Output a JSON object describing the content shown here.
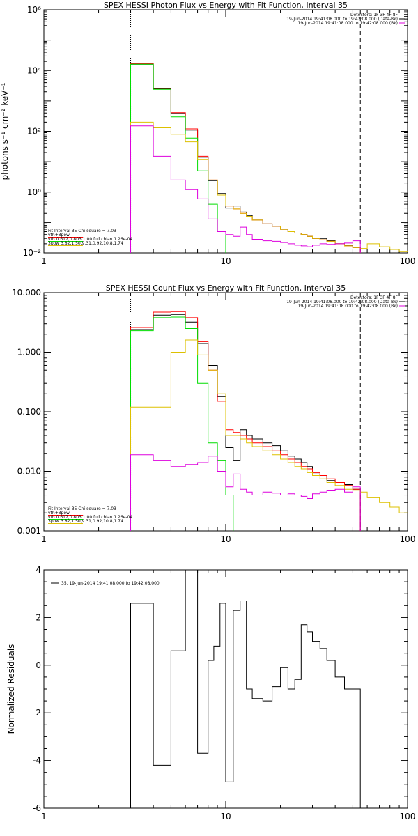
{
  "colors": {
    "black": "#000000",
    "red": "#ff0000",
    "green": "#00dd00",
    "yellow": "#ddc000",
    "magenta": "#dd00dd"
  },
  "chart_data": [
    {
      "id": "photon",
      "type": "line",
      "step": true,
      "title": "SPEX HESSI Photon Flux vs Energy with Fit Function, Interval 35",
      "ylabel": "photons s⁻¹ cm⁻² keV⁻¹",
      "xlabel": "",
      "xscale": "log",
      "yscale": "log",
      "xlim": [
        1,
        100
      ],
      "ylim": [
        0.01,
        1000000
      ],
      "xticks": [
        1,
        10,
        100
      ],
      "xtick_labels": [
        "1",
        "10",
        "100"
      ],
      "yticks": [
        0.01,
        1,
        100,
        10000,
        1000000
      ],
      "ytick_labels": [
        "10⁻²",
        "10⁰",
        "10²",
        "10⁴",
        "10⁶"
      ],
      "vlines": [
        {
          "x": 3,
          "style": "dotted"
        },
        {
          "x": 55,
          "style": "dashed"
        }
      ],
      "legend_top": [
        "Detectors: 1F 3F 4F 8F",
        "19-Jun-2014 19:41:08.000 to 19:42:08.000 (Data-Bk)",
        "19-Jun-2014 19:41:08.000 to 19:42:08.000 (Bk)"
      ],
      "legend_top_colors": [
        "",
        "#000000",
        "#dd00dd"
      ],
      "legend_bottom": [
        "Fit Interval 35   Chi-square = 7.03",
        "vth+3pow",
        "vth 0.617,0.803,1.00  full chian 1.26e-04",
        "3pow 3.82,1.50,9.31,0.92,10.8,1.74"
      ],
      "legend_bottom_colors": [
        "",
        "#ff0000",
        "#00dd00",
        "#ddc000"
      ],
      "edges": [
        3,
        4,
        5,
        6,
        7,
        8,
        9,
        10,
        11,
        12,
        13,
        14,
        16,
        18,
        20,
        22,
        24,
        26,
        28,
        30,
        33,
        36,
        40,
        45,
        50,
        55,
        60,
        70,
        80,
        90,
        100
      ],
      "series": [
        {
          "color": "#000000",
          "values": [
            16000,
            2500,
            400,
            110,
            14,
            2.4,
            0.9,
            0.3,
            0.35,
            0.22,
            0.17,
            0.12,
            0.09,
            0.075,
            0.06,
            0.05,
            0.045,
            0.04,
            0.035,
            0.03,
            0.03,
            0.025,
            0.02,
            0.018,
            0.015,
            null,
            null,
            null,
            null,
            null
          ]
        },
        {
          "color": "#ff0000",
          "values": [
            17000,
            2600,
            410,
            120,
            15,
            2.5,
            0.8,
            0.35,
            0.28,
            0.2,
            0.16,
            0.12,
            0.09,
            0.075,
            0.06,
            0.05,
            0.045,
            0.04,
            0.035,
            0.03,
            0.027,
            0.024,
            0.02,
            0.017,
            0.015,
            null,
            null,
            null,
            null,
            null
          ]
        },
        {
          "color": "#00dd00",
          "values": [
            16000,
            2400,
            300,
            60,
            5,
            0.4,
            0.05,
            null,
            null,
            null,
            null,
            null,
            null,
            null,
            null,
            null,
            null,
            null,
            null,
            null,
            null,
            null,
            null,
            null,
            null,
            null,
            null,
            null,
            null,
            null
          ]
        },
        {
          "color": "#ddc000",
          "values": [
            200,
            130,
            80,
            45,
            12,
            2.5,
            0.8,
            0.35,
            0.28,
            0.2,
            0.16,
            0.12,
            0.09,
            0.075,
            0.06,
            0.05,
            0.045,
            0.04,
            0.035,
            0.03,
            0.027,
            0.024,
            0.02,
            0.017,
            0.015,
            0.014,
            0.02,
            0.016,
            0.013,
            0.011
          ]
        },
        {
          "color": "#dd00dd",
          "values": [
            150,
            15,
            2.5,
            1.2,
            0.6,
            0.13,
            0.05,
            0.04,
            0.035,
            0.07,
            0.04,
            0.028,
            0.025,
            0.024,
            0.022,
            0.02,
            0.018,
            0.017,
            0.016,
            0.018,
            0.02,
            0.019,
            0.02,
            0.021,
            0.025,
            null,
            null,
            null,
            null,
            null
          ]
        }
      ]
    },
    {
      "id": "count",
      "type": "line",
      "step": true,
      "title": "SPEX HESSI Count Flux vs Energy with Fit Function, Interval 35",
      "ylabel": "",
      "xlabel": "",
      "xscale": "log",
      "yscale": "log",
      "xlim": [
        1,
        100
      ],
      "ylim": [
        0.001,
        10
      ],
      "xticks": [
        1,
        10,
        100
      ],
      "xtick_labels": [
        "1",
        "10",
        "100"
      ],
      "yticks": [
        0.001,
        0.01,
        0.1,
        1,
        10
      ],
      "ytick_labels": [
        "0.001",
        "0.010",
        "0.100",
        "1.000",
        "10.000"
      ],
      "vlines": [
        {
          "x": 3,
          "style": "dotted"
        },
        {
          "x": 55,
          "style": "dashed"
        }
      ],
      "legend_top": [
        "Detectors: 1F 3F 4F 8F",
        "19-Jun-2014 19:41:08.000 to 19:42:08.000 (Data-Bk)",
        "19-Jun-2014 19:41:08.000 to 19:42:08.000 (Bk)"
      ],
      "legend_top_colors": [
        "",
        "#000000",
        "#dd00dd"
      ],
      "legend_bottom": [
        "Fit Interval 35   Chi-square = 7.03",
        "vth+3pow",
        "vth 0.617,0.803,1.00  full chian 1.26e-04",
        "3pow 3.82,1.50,9.31,0.92,10.8,1.74"
      ],
      "legend_bottom_colors": [
        "",
        "#ff0000",
        "#00dd00",
        "#ddc000"
      ],
      "edges": [
        3,
        4,
        5,
        6,
        7,
        8,
        9,
        10,
        11,
        12,
        13,
        14,
        16,
        18,
        20,
        22,
        24,
        26,
        28,
        30,
        33,
        36,
        40,
        45,
        50,
        55,
        60,
        70,
        80,
        90,
        100
      ],
      "series": [
        {
          "color": "#000000",
          "values": [
            2.4,
            4.2,
            4.3,
            3.2,
            1.4,
            0.6,
            0.18,
            0.025,
            0.015,
            0.05,
            0.04,
            0.035,
            0.03,
            0.027,
            0.022,
            0.018,
            0.016,
            0.014,
            0.012,
            0.009,
            0.0085,
            0.007,
            0.0065,
            0.006,
            0.005,
            null,
            null,
            null,
            null,
            null
          ]
        },
        {
          "color": "#ff0000",
          "values": [
            2.6,
            4.7,
            4.8,
            3.8,
            1.5,
            0.5,
            0.15,
            0.05,
            0.045,
            0.04,
            0.035,
            0.03,
            0.026,
            0.022,
            0.019,
            0.016,
            0.014,
            0.012,
            0.011,
            0.0095,
            0.0085,
            0.0075,
            0.0065,
            0.0058,
            0.005,
            null,
            null,
            null,
            null,
            null
          ]
        },
        {
          "color": "#00dd00",
          "values": [
            2.3,
            3.8,
            3.9,
            2.5,
            0.3,
            0.03,
            0.015,
            0.004,
            0.0005,
            null,
            null,
            null,
            null,
            null,
            null,
            null,
            null,
            null,
            null,
            null,
            null,
            null,
            null,
            null,
            null,
            null,
            null,
            null,
            null,
            null
          ]
        },
        {
          "color": "#ddc000",
          "values": [
            0.12,
            0.12,
            1.0,
            1.6,
            0.9,
            0.5,
            0.2,
            0.04,
            0.04,
            0.035,
            0.03,
            0.026,
            0.022,
            0.019,
            0.016,
            0.014,
            0.012,
            0.011,
            0.0095,
            0.0085,
            0.0075,
            0.0065,
            0.0058,
            0.005,
            0.0048,
            0.0045,
            0.0036,
            0.003,
            0.0025,
            0.002
          ]
        },
        {
          "color": "#dd00dd",
          "values": [
            0.019,
            0.015,
            0.012,
            0.013,
            0.014,
            0.018,
            0.01,
            0.0055,
            0.009,
            0.005,
            0.0045,
            0.004,
            0.0045,
            0.0043,
            0.004,
            0.0042,
            0.004,
            0.0038,
            0.0035,
            0.0042,
            0.0045,
            0.0047,
            0.005,
            0.0045,
            0.0055,
            null,
            null,
            null,
            null,
            null
          ]
        }
      ]
    },
    {
      "id": "resid",
      "type": "line",
      "step": true,
      "title": "",
      "ylabel": "Normalized Residuals",
      "xlabel": "",
      "xscale": "log",
      "yscale": "linear",
      "xlim": [
        1,
        100
      ],
      "ylim": [
        -6,
        4
      ],
      "xticks": [
        1,
        10,
        100
      ],
      "xtick_labels": [
        "1",
        "10",
        "100"
      ],
      "yticks": [
        -6,
        -4,
        -2,
        0,
        2,
        4
      ],
      "ytick_labels": [
        "-6",
        "-4",
        "-2",
        "0",
        "2",
        "4"
      ],
      "vlines": [],
      "legend_top": [],
      "legend_top_colors": [],
      "legend_bottom": [],
      "legend_bottom_colors": [],
      "legend_left": "35. 19-Jun-2014 19:41:08.000 to 19:42:08.000",
      "edges": [
        3,
        4,
        5,
        6,
        7,
        8,
        8.6,
        9.3,
        10,
        11,
        12,
        13,
        14,
        16,
        18,
        20,
        22,
        24,
        26,
        28,
        30,
        33,
        36,
        40,
        45,
        50,
        55
      ],
      "series": [
        {
          "color": "#000000",
          "values": [
            2.6,
            -4.2,
            0.6,
            4.0,
            -3.7,
            0.2,
            0.8,
            2.6,
            -4.9,
            2.3,
            2.7,
            -1.0,
            -1.4,
            -1.5,
            -0.9,
            -0.1,
            -1.0,
            -0.6,
            1.7,
            1.4,
            1.0,
            0.7,
            0.2,
            -0.5,
            -1.0,
            -1.0
          ],
          "drop_to": -6
        }
      ]
    }
  ]
}
